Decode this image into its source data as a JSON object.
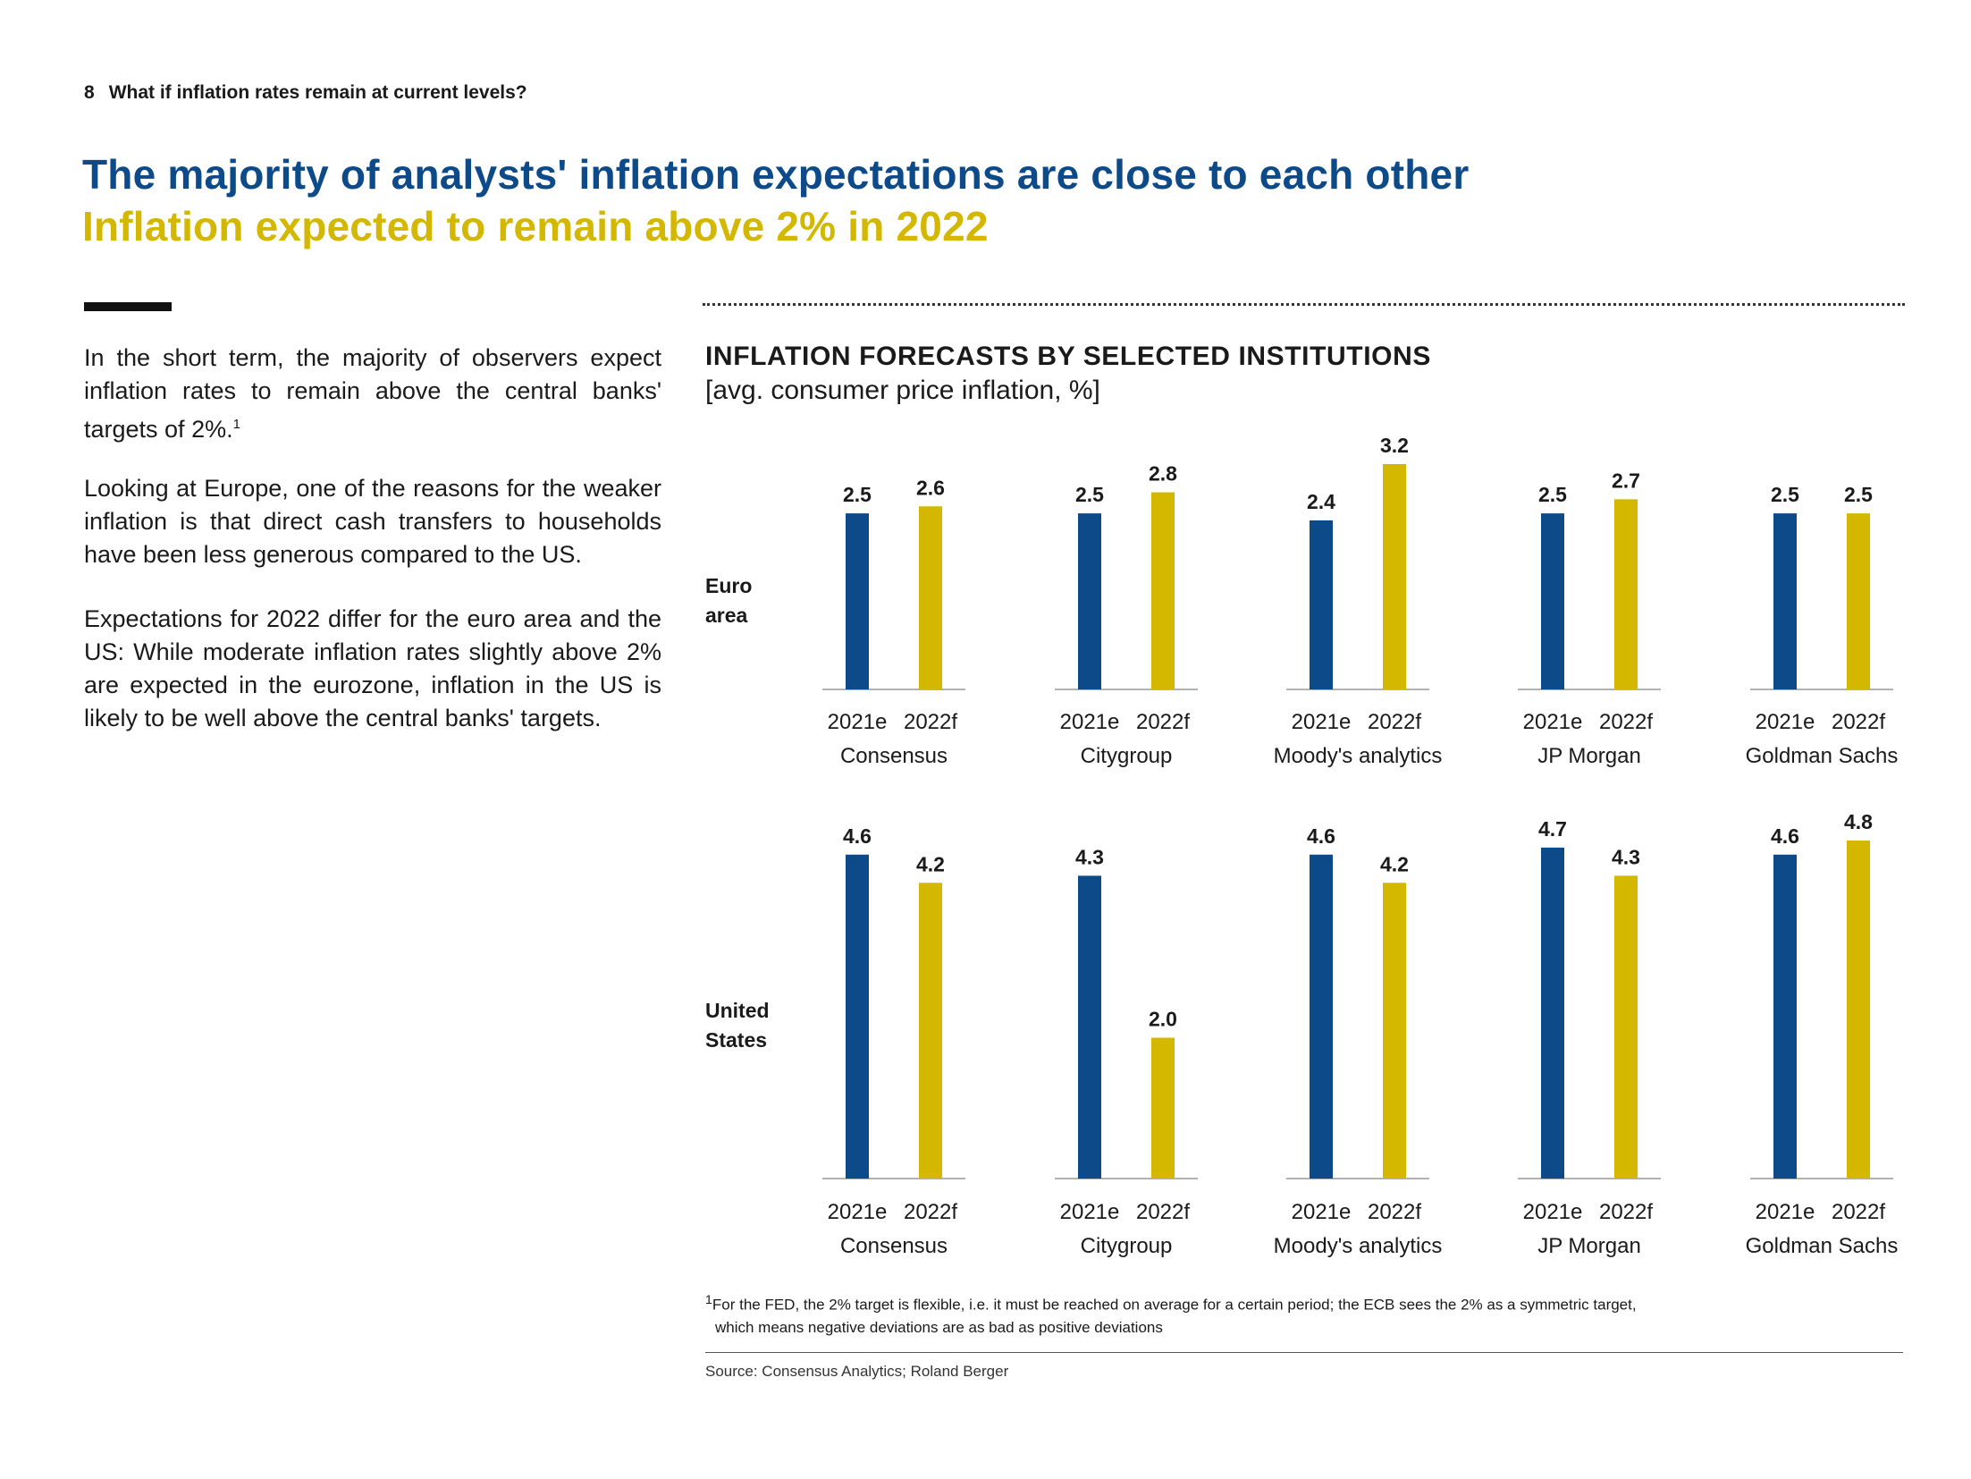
{
  "header": {
    "page_number": "8",
    "section_title": "What if inflation rates remain at current levels?"
  },
  "headline": "The majority of analysts' inflation expectations are close to each other",
  "subheadline": "Inflation expected to remain above 2% in 2022",
  "body": {
    "p1": "In the short term, the majority of observers expect inflation rates to remain above the central banks' targets of 2%.",
    "p1_sup": "1",
    "p2": "Looking at Europe, one of the reasons for the weaker inflation is that direct cash transfers to households have been less generous compared to the US.",
    "p3": "Expectations for 2022 differ for the euro area and the US: While moderate inflation rates slightly above 2% are expected in the eurozone, inflation in the US is likely to be well above the central banks' targets."
  },
  "colors": {
    "series_2021e": "#0d4a8a",
    "series_2022f": "#d4b800",
    "headline": "#0d4a8a",
    "subheadline": "#d4b800"
  },
  "chart_data": {
    "type": "bar",
    "title": "INFLATION FORECASTS BY SELECTED INSTITUTIONS",
    "subtitle": "[avg. consumer price inflation, %]",
    "categories": [
      "Consensus",
      "Citygroup",
      "Moody's analytics",
      "JP Morgan",
      "Goldman Sachs"
    ],
    "series_labels": [
      "2021e",
      "2022f"
    ],
    "panels": [
      {
        "region": [
          "Euro",
          "area"
        ],
        "values_2021e": [
          2.5,
          2.5,
          2.4,
          2.5,
          2.5
        ],
        "values_2022f": [
          2.6,
          2.8,
          3.2,
          2.7,
          2.5
        ],
        "ylim": [
          0,
          3.2
        ]
      },
      {
        "region": [
          "United",
          "States"
        ],
        "values_2021e": [
          4.6,
          4.3,
          4.6,
          4.7,
          4.6
        ],
        "values_2022f": [
          4.2,
          2.0,
          4.2,
          4.3,
          4.8
        ],
        "ylim": [
          0,
          4.8
        ]
      }
    ]
  },
  "footnote": {
    "sup": "1",
    "line1": "For the FED, the 2% target is flexible, i.e. it must be reached on average for a certain period; the ECB sees the 2% as a symmetric target,",
    "line2": "which means negative deviations are as bad as positive deviations"
  },
  "source": "Source: Consensus Analytics; Roland Berger"
}
